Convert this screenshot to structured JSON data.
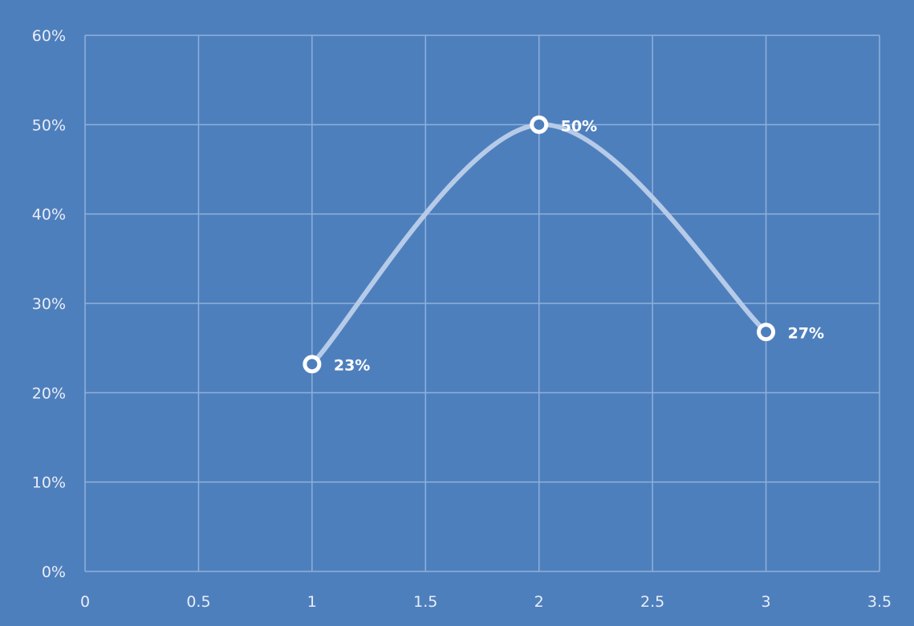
{
  "colors": {
    "background": "#4e7fbd",
    "gridline": "#8fb0dc",
    "line": "#b6cbe8",
    "marker_fill": "#4e7fbd",
    "marker_stroke": "#ffffff",
    "text": "#e9eef7"
  },
  "chart_data": {
    "type": "scatter",
    "variant": "smooth-line-with-markers",
    "title": "",
    "xlabel": "",
    "ylabel": "",
    "xlim": [
      0,
      3.5
    ],
    "ylim": [
      0,
      0.6
    ],
    "x_ticks": [
      "0",
      "0.5",
      "1",
      "1.5",
      "2",
      "2.5",
      "3",
      "3.5"
    ],
    "y_ticks": [
      "0%",
      "10%",
      "20%",
      "30%",
      "40%",
      "50%",
      "60%"
    ],
    "grid": true,
    "legend": "none",
    "series": [
      {
        "points": [
          {
            "x": 1,
            "y": 0.232,
            "label": "23%"
          },
          {
            "x": 2,
            "y": 0.5,
            "label": "50%"
          },
          {
            "x": 3,
            "y": 0.268,
            "label": "27%"
          }
        ]
      }
    ]
  }
}
